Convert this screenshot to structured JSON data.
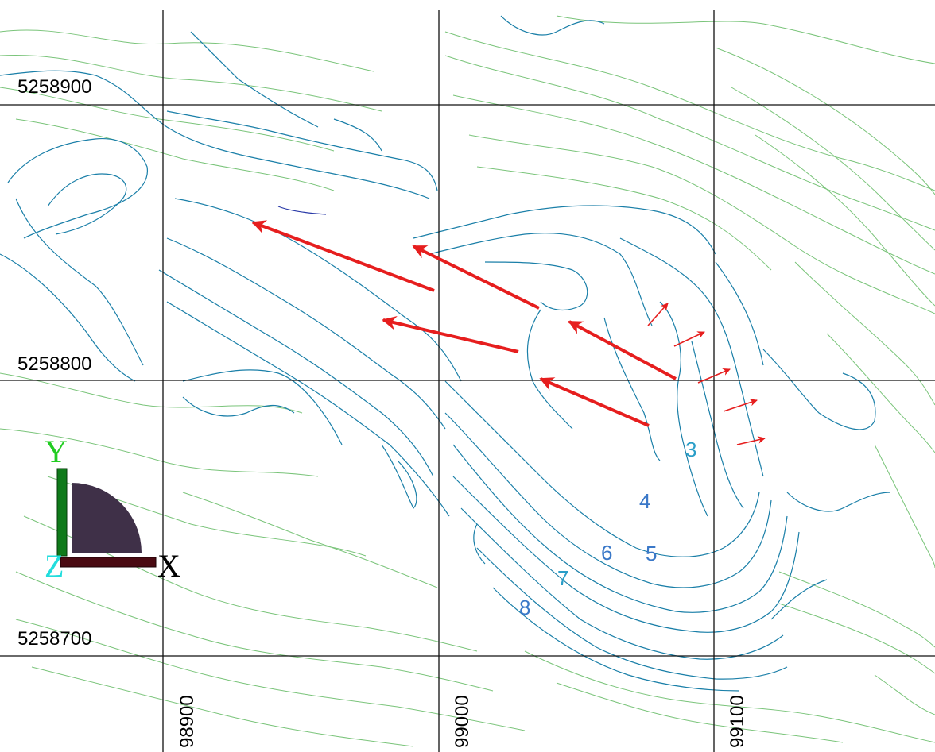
{
  "map": {
    "grid": {
      "northing_labels": [
        "5258900",
        "5258800",
        "5258700"
      ],
      "easting_labels": [
        "98900",
        "99000",
        "99100"
      ]
    },
    "bench_labels": [
      "3",
      "4",
      "5",
      "6",
      "7",
      "8"
    ],
    "axis_triad": {
      "x": "X",
      "y": "Y",
      "z": "Z"
    },
    "colors": {
      "grid": "#111111",
      "terrain_contours": "#7ac47a",
      "pit_contours": "#1a7fa8",
      "displacement_vectors": "#e61e1e",
      "bench_label_3": "#2a9ec8",
      "bench_labels": "#3a78c8",
      "axis_x": "#000000",
      "axis_y": "#22cc22",
      "axis_z": "#22dddd"
    }
  }
}
